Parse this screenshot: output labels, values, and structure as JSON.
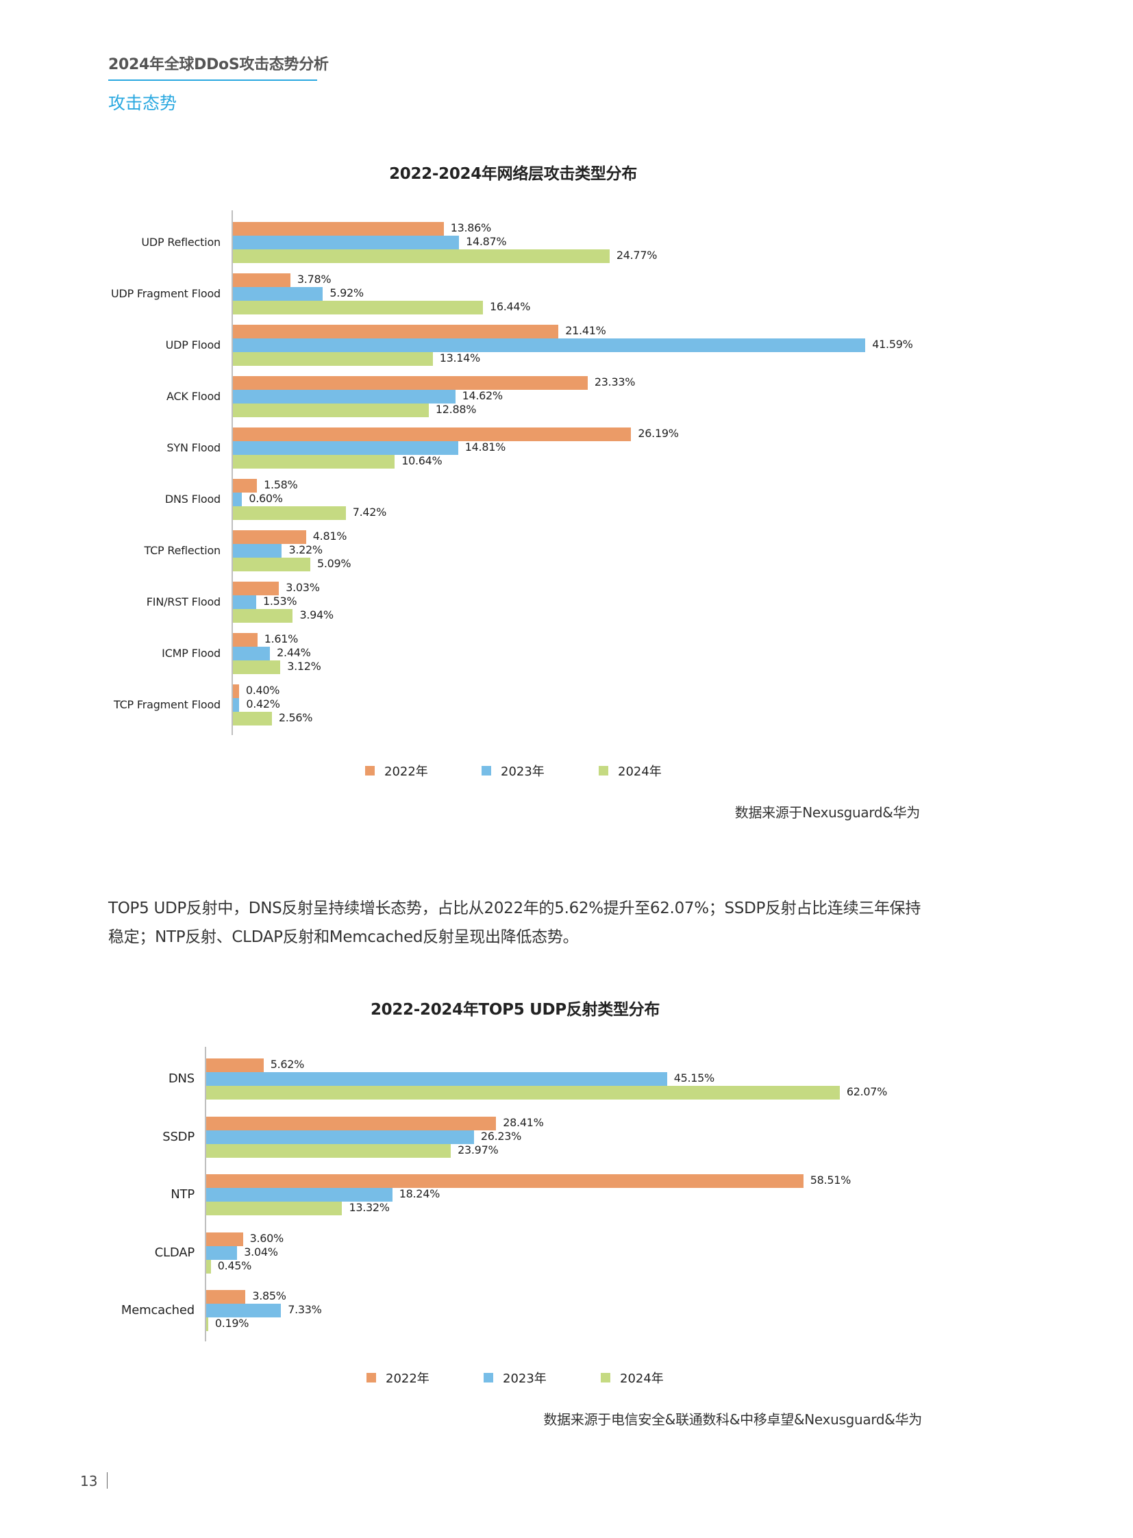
{
  "header": {
    "doc_title": "2024年全球DDoS攻击态势分析",
    "section_title": "攻击态势",
    "accent_color": "#29A8E0"
  },
  "colors": {
    "series_2022": "#EB9B67",
    "series_2023": "#77BDE7",
    "series_2024": "#C5DA82",
    "axis": "#BFBFBF"
  },
  "chart1": {
    "source": "数据来源于Nexusguard&华为"
  },
  "paragraph": {
    "text": "TOP5 UDP反射中，DNS反射呈持续增长态势，占比从2022年的5.62%提升至62.07%；SSDP反射占比连续三年保持稳定；NTP反射、CLDAP反射和Memcached反射呈现出降低态势。"
  },
  "chart2": {
    "source": "数据来源于电信安全&联通数科&中移卓望&Nexusguard&华为"
  },
  "footer": {
    "page_number": "13"
  },
  "chart_data": [
    {
      "type": "bar",
      "orientation": "horizontal",
      "title": "2022-2024年网络层攻击类型分布",
      "xlabel": "",
      "ylabel": "",
      "grid": false,
      "legend_position": "bottom",
      "categories": [
        "UDP Reflection",
        "UDP Fragment Flood",
        "UDP Flood",
        "ACK Flood",
        "SYN Flood",
        "DNS Flood",
        "TCP Reflection",
        "FIN/RST Flood",
        "ICMP Flood",
        "TCP Fragment Flood"
      ],
      "series": [
        {
          "name": "2022年",
          "values": [
            13.86,
            3.78,
            21.41,
            23.33,
            26.19,
            1.58,
            4.81,
            3.03,
            1.61,
            0.4
          ],
          "labels": [
            "13.86%",
            "3.78%",
            "21.41%",
            "23.33%",
            "26.19%",
            "1.58%",
            "4.81%",
            "3.03%",
            "1.61%",
            "0.40%"
          ]
        },
        {
          "name": "2023年",
          "values": [
            14.87,
            5.92,
            41.59,
            14.62,
            14.81,
            0.6,
            3.22,
            1.53,
            2.44,
            0.42
          ],
          "labels": [
            "14.87%",
            "5.92%",
            "41.59%",
            "14.62%",
            "14.81%",
            "0.60%",
            "3.22%",
            "1.53%",
            "2.44%",
            "0.42%"
          ]
        },
        {
          "name": "2024年",
          "values": [
            24.77,
            16.44,
            13.14,
            12.88,
            10.64,
            7.42,
            5.09,
            3.94,
            3.12,
            2.56
          ],
          "labels": [
            "24.77%",
            "16.44%",
            "13.14%",
            "12.88%",
            "10.64%",
            "7.42%",
            "5.09%",
            "3.94%",
            "3.12%",
            "2.56%"
          ]
        }
      ],
      "unit": "%",
      "source": "数据来源于Nexusguard&华为"
    },
    {
      "type": "bar",
      "orientation": "horizontal",
      "title": "2022-2024年TOP5 UDP反射类型分布",
      "xlabel": "",
      "ylabel": "",
      "grid": false,
      "legend_position": "bottom",
      "categories": [
        "DNS",
        "SSDP",
        "NTP",
        "CLDAP",
        "Memcached"
      ],
      "series": [
        {
          "name": "2022年",
          "values": [
            5.62,
            28.41,
            58.51,
            3.6,
            3.85
          ],
          "labels": [
            "5.62%",
            "28.41%",
            "58.51%",
            "3.60%",
            "3.85%"
          ]
        },
        {
          "name": "2023年",
          "values": [
            45.15,
            26.23,
            18.24,
            3.04,
            7.33
          ],
          "labels": [
            "45.15%",
            "26.23%",
            "18.24%",
            "3.04%",
            "7.33%"
          ]
        },
        {
          "name": "2024年",
          "values": [
            62.07,
            23.97,
            13.32,
            0.45,
            0.19
          ],
          "labels": [
            "62.07%",
            "23.97%",
            "13.32%",
            "0.45%",
            "0.19%"
          ]
        }
      ],
      "unit": "%",
      "source": "数据来源于电信安全&联通数科&中移卓望&Nexusguard&华为"
    }
  ]
}
